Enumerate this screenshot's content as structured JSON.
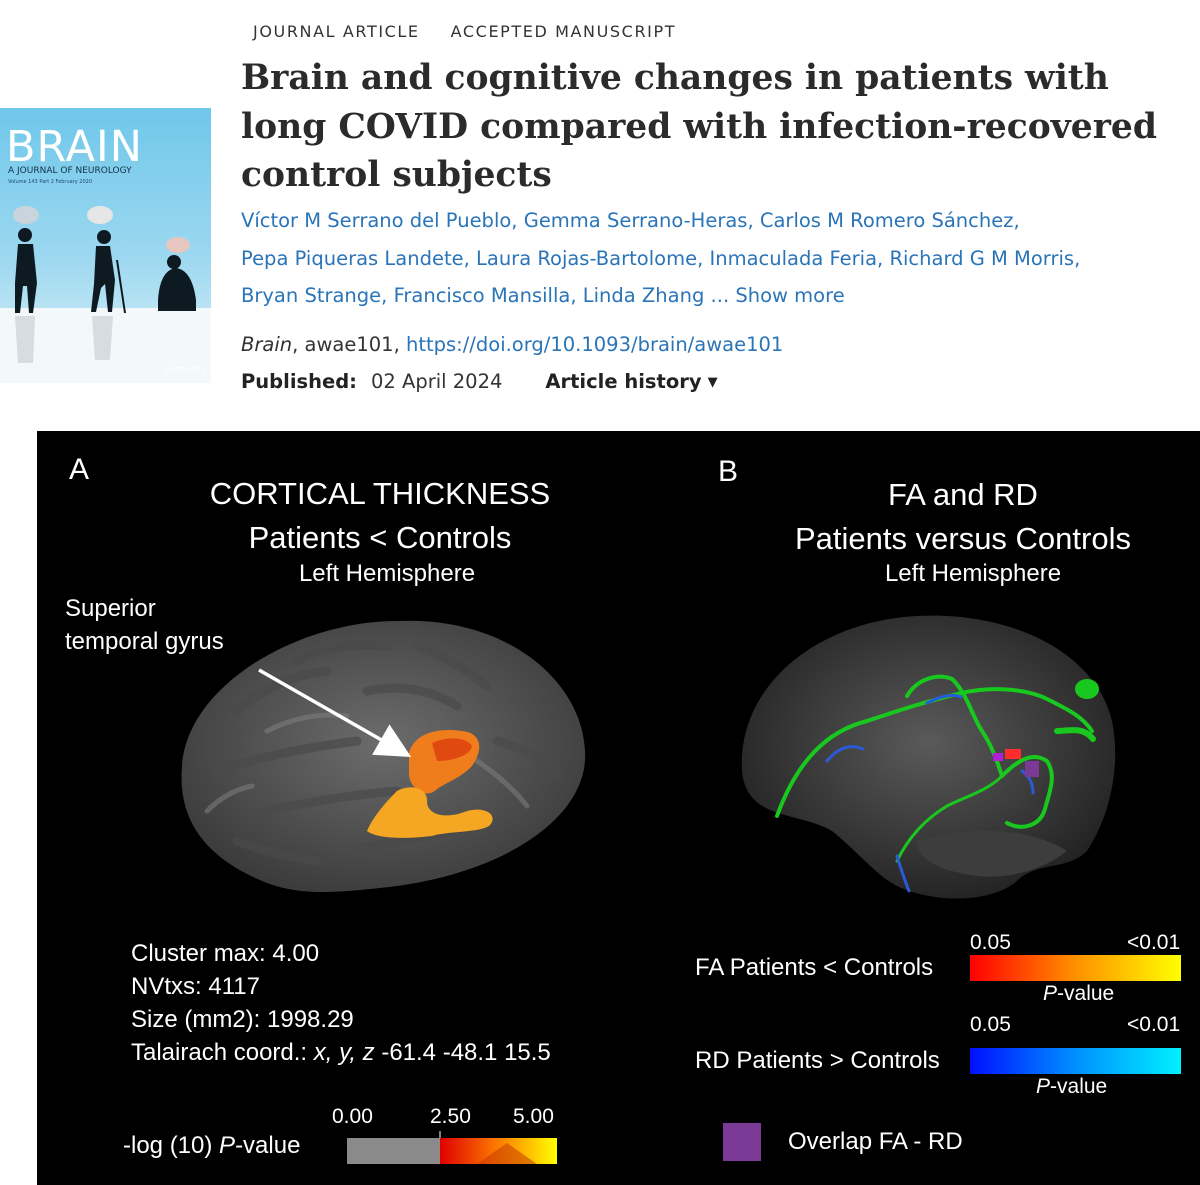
{
  "article": {
    "badges": [
      "JOURNAL ARTICLE",
      "ACCEPTED MANUSCRIPT"
    ],
    "title": "Brain and cognitive changes in patients with long COVID compared with infection-recovered control subjects",
    "authors": [
      "Víctor M Serrano del Pueblo",
      "Gemma Serrano-Heras",
      "Carlos M Romero Sánchez",
      "Pepa Piqueras Landete",
      "Laura Rojas-Bartolome",
      "Inmaculada Feria",
      "Richard G M Morris",
      "Bryan Strange",
      "Francisco Mansilla",
      "Linda Zhang"
    ],
    "ellipsis": "...",
    "show_more": "Show more",
    "journal": "Brain",
    "article_id": ", awae101, ",
    "doi": "https://doi.org/10.1093/brain/awae101",
    "published_label": "Published:",
    "published_date": "02 April 2024",
    "history_label": "Article history"
  },
  "cover": {
    "title": "BRAIN",
    "subtitle": "A JOURNAL OF NEUROLOGY",
    "volume": "Volume 143 Part 2 February 2020",
    "publisher": "OXFORD",
    "background": "#6fc7ea"
  },
  "figure": {
    "panel_a": {
      "letter": "A",
      "title_line1": "CORTICAL THICKNESS",
      "title_line2": "Patients < Controls",
      "hemisphere": "Left Hemisphere",
      "annotation_line1": "Superior",
      "annotation_line2": "temporal gyrus",
      "stats": {
        "cluster_max": "Cluster max: 4.00",
        "nvtxs": "NVtxs: 4117",
        "size": "Size (mm2): 1998.29",
        "coord_label": "Talairach coord.: ",
        "coord_axes": "x, y, z",
        "coord_values": "  -61.4   -48.1   15.5"
      },
      "colorbar": {
        "label_prefix": "-log (10) ",
        "label_italic": "P",
        "label_suffix": "-value",
        "ticks": [
          "0.00",
          "2.50",
          "5.00"
        ],
        "colors": {
          "gray": "#8a8a8a",
          "low": "#e00000",
          "high": "#ffff00"
        }
      }
    },
    "panel_b": {
      "letter": "B",
      "title_line1": "FA and RD",
      "title_line2": "Patients versus Controls",
      "hemisphere": "Left Hemisphere",
      "fa_label": "FA  Patients < Controls",
      "rd_label": "RD  Patients > Controls",
      "fa_ticks": [
        "0.05",
        "<0.01"
      ],
      "rd_ticks": [
        "0.05",
        "<0.01"
      ],
      "pvalue_italic": "P",
      "pvalue_suffix": "-value",
      "overlap_label": "Overlap FA - RD",
      "colors": {
        "fa_low": "#ff0000",
        "fa_high": "#ffff00",
        "rd_low": "#0010ff",
        "rd_high": "#00f0ff",
        "overlap": "#7b3a96",
        "tract": "#19c81e"
      }
    }
  }
}
